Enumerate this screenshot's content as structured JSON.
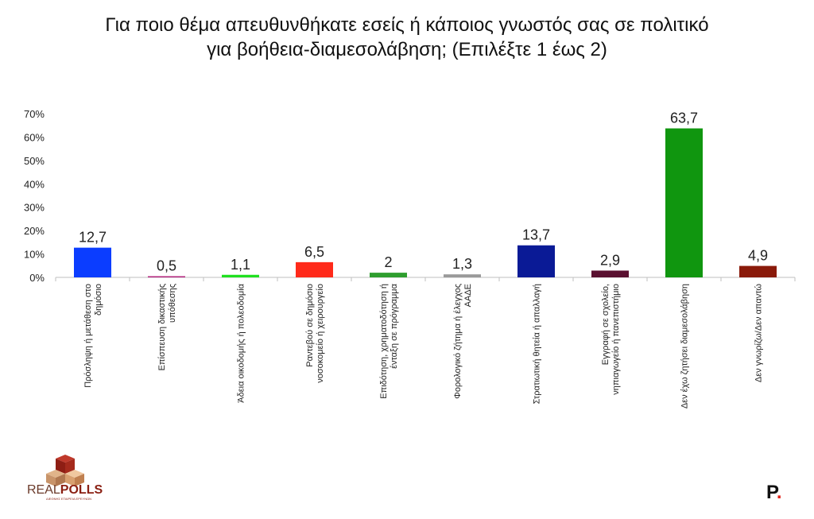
{
  "title_lines": [
    "Για ποιο θέμα απευθυνθήκατε εσείς ή κάποιος γνωστός σας σε πολιτικό",
    "για βοήθεια-διαμεσολάβηση; (Επιλέξτε 1 έως 2)"
  ],
  "chart_data": {
    "type": "bar",
    "title": "Για ποιο θέμα απευθυνθήκατε εσείς ή κάποιος γνωστός σας σε πολιτικό για βοήθεια-διαμεσολάβηση; (Επιλέξτε 1 έως 2)",
    "ylim": [
      0,
      70
    ],
    "yticks": [
      "0%",
      "10%",
      "20%",
      "30%",
      "40%",
      "50%",
      "60%",
      "70%"
    ],
    "grid": false,
    "categories": [
      [
        "Πρόσληψη ή μετάθεση στο",
        "δημόσιο"
      ],
      [
        "Επίσπευση δικαστικής",
        "υπόθεσης"
      ],
      [
        "Άδεια οικοδομής ή πολεοδομία"
      ],
      [
        "Ραντεβού σε δημόσιο",
        "νοσοκομείο ή χειρουργείο"
      ],
      [
        "Επιδότηση, χρηματοδότηση ή",
        "ένταξη σε πρόγραμμα"
      ],
      [
        "Φορολογικό ζήτημα ή έλεγχος",
        "ΑΑΔΕ"
      ],
      [
        "Στρατιωτική θητεία ή απαλλαγή"
      ],
      [
        "Εγγραφή σε σχολείο,",
        "νηπιαγωγείο ή πανεπιστήμιο"
      ],
      [
        "Δεν έχω ζητήσει διαμεσολάβηση"
      ],
      [
        "Δεν γνωρίζω/Δεν απαντώ"
      ]
    ],
    "values": [
      12.7,
      0.5,
      1.1,
      6.5,
      2,
      1.3,
      13.7,
      2.9,
      63.7,
      4.9
    ],
    "value_labels": [
      "12,7",
      "0,5",
      "1,1",
      "6,5",
      "2",
      "1,3",
      "13,7",
      "2,9",
      "63,7",
      "4,9"
    ],
    "colors": [
      "#0b3dff",
      "#b2207a",
      "#1fe01f",
      "#ff2a1a",
      "#2e9e2e",
      "#9a9a9a",
      "#0a1a96",
      "#5a1030",
      "#10960f",
      "#8a1a0a"
    ]
  },
  "logo_left": {
    "text_light": "REAL",
    "text_bold": "POLLS",
    "tagline": "ΔΙΕΘΝΗΣ ΕΤΑΙΡΕΙΑ ΕΡΕΥΝΩΝ"
  },
  "logo_right": {
    "letter": "P",
    "dot": "."
  }
}
